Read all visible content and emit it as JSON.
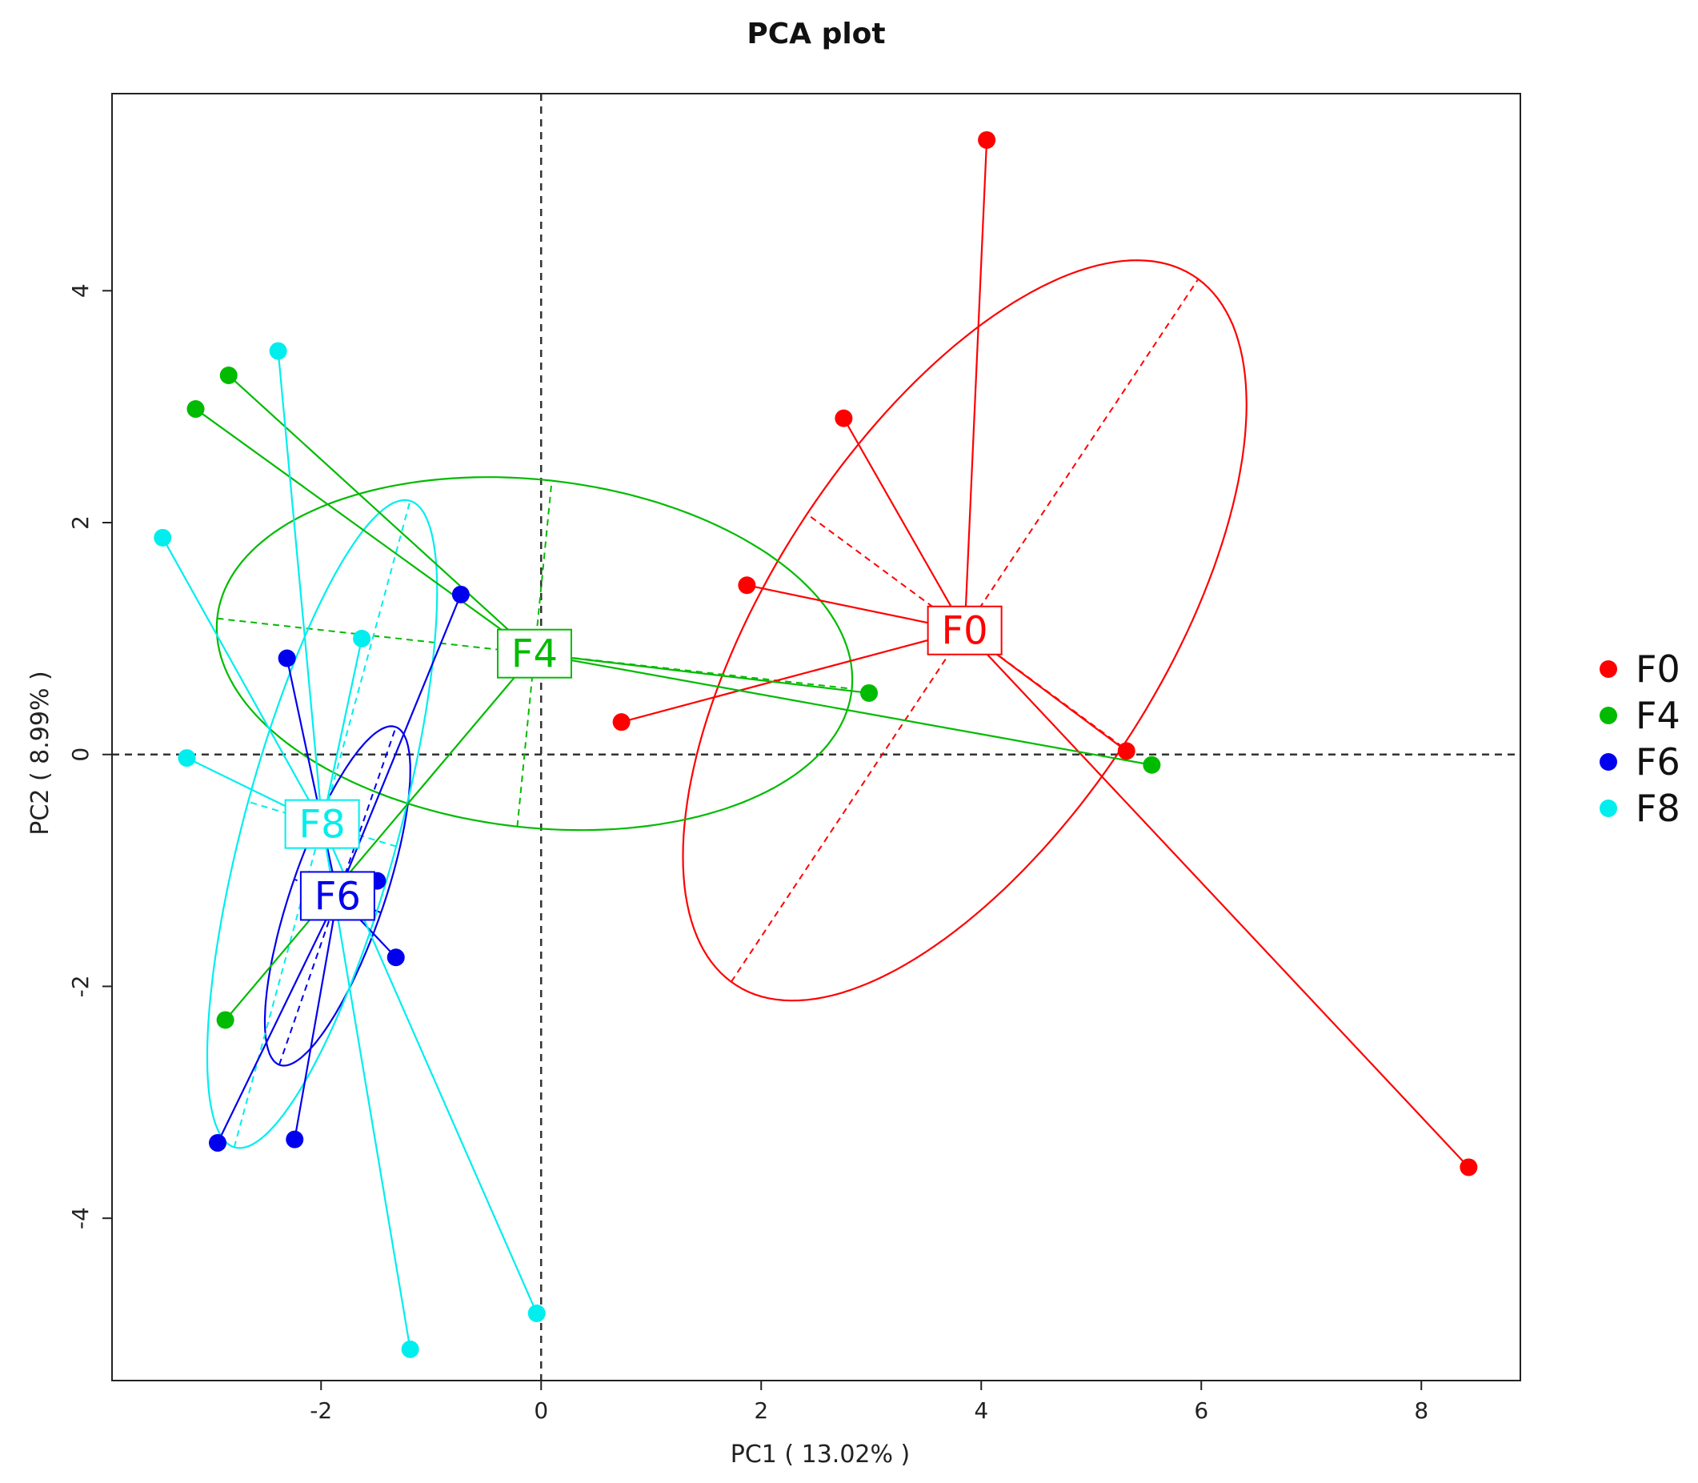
{
  "chart_data": {
    "type": "scatter",
    "title": "PCA plot",
    "xlabel": "PC1 ( 13.02% )",
    "ylabel": "PC2 ( 8.99% )",
    "xlim": [
      -3.9,
      8.9
    ],
    "ylim": [
      -5.4,
      5.7
    ],
    "xticks": [
      -2,
      0,
      2,
      4,
      6,
      8
    ],
    "yticks": [
      -4,
      -2,
      0,
      2,
      4
    ],
    "xtick_labels": [
      "-2",
      "0",
      "2",
      "4",
      "6",
      "8"
    ],
    "ytick_labels": [
      "-4",
      "-2",
      "0",
      "2",
      "4"
    ],
    "reference_lines": {
      "x": 0,
      "y": 0
    },
    "legend_position": "right",
    "series": [
      {
        "name": "F0",
        "color": "#ff0000",
        "centroid": [
          3.85,
          1.07
        ],
        "points": [
          [
            4.05,
            5.3
          ],
          [
            2.75,
            2.9
          ],
          [
            1.87,
            1.46
          ],
          [
            0.73,
            0.28
          ],
          [
            5.32,
            0.03
          ],
          [
            8.43,
            -3.56
          ]
        ],
        "ellipse": {
          "center": [
            3.85,
            1.07
          ],
          "angle_deg": 55,
          "semi_major": 3.7,
          "semi_minor": 1.75
        }
      },
      {
        "name": "F4",
        "color": "#00bb00",
        "centroid": [
          -0.06,
          0.87
        ],
        "points": [
          [
            -2.84,
            3.27
          ],
          [
            -3.14,
            2.98
          ],
          [
            2.98,
            0.53
          ],
          [
            5.55,
            -0.09
          ],
          [
            -2.87,
            -2.29
          ]
        ],
        "ellipse": {
          "center": [
            -0.06,
            0.87
          ],
          "angle_deg": -6,
          "semi_major": 2.9,
          "semi_minor": 1.5
        }
      },
      {
        "name": "F6",
        "color": "#0000ee",
        "centroid": [
          -1.85,
          -1.22
        ],
        "points": [
          [
            -0.73,
            1.38
          ],
          [
            -2.31,
            0.83
          ],
          [
            -1.49,
            -1.09
          ],
          [
            -1.32,
            -1.75
          ],
          [
            -2.94,
            -3.35
          ],
          [
            -2.24,
            -3.32
          ]
        ],
        "ellipse": {
          "center": [
            -1.85,
            -1.22
          ],
          "angle_deg": 70,
          "semi_major": 1.55,
          "semi_minor": 0.42
        }
      },
      {
        "name": "F8",
        "color": "#00eeee",
        "centroid": [
          -1.99,
          -0.6
        ],
        "points": [
          [
            -2.39,
            3.48
          ],
          [
            -3.44,
            1.87
          ],
          [
            -1.63,
            1.0
          ],
          [
            -3.22,
            -0.03
          ],
          [
            -0.04,
            -4.82
          ],
          [
            -1.19,
            -5.13
          ]
        ],
        "ellipse": {
          "center": [
            -1.99,
            -0.6
          ],
          "angle_deg": 74,
          "semi_major": 2.9,
          "semi_minor": 0.7
        }
      }
    ]
  }
}
